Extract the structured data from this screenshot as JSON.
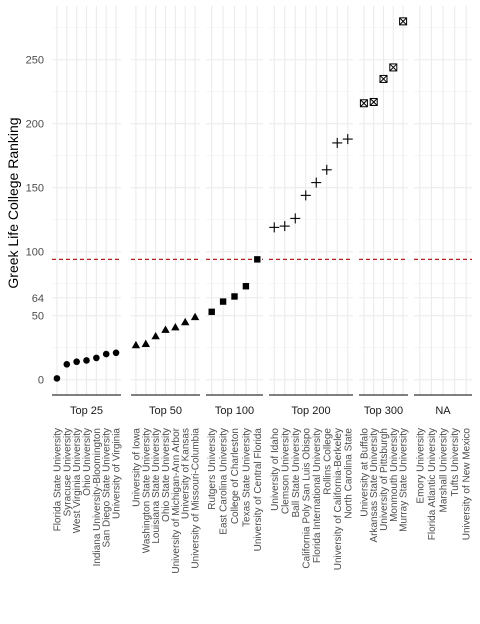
{
  "chart_data": {
    "type": "scatter",
    "ylabel": "Greek Life College Ranking",
    "xlabel": "",
    "y_ticks": [
      0,
      50,
      64,
      100,
      150,
      200,
      250
    ],
    "ylim": [
      -12,
      292
    ],
    "reference_line": {
      "y": 94,
      "style": "dashed",
      "color": "#b22222"
    },
    "grid": true,
    "theme": "minimal",
    "facets": [
      {
        "label": "Top 25",
        "marker": "circle",
        "points": [
          {
            "school": "Florida State University",
            "rank": 1
          },
          {
            "school": "Syracuse University",
            "rank": 12
          },
          {
            "school": "West Virginia University",
            "rank": 14
          },
          {
            "school": "Ohio University",
            "rank": 15
          },
          {
            "school": "Indiana University-Bloomington",
            "rank": 17
          },
          {
            "school": "San Diego State University",
            "rank": 20
          },
          {
            "school": "University of Virginia",
            "rank": 21
          }
        ]
      },
      {
        "label": "Top 50",
        "marker": "triangle",
        "points": [
          {
            "school": "University of Iowa",
            "rank": 27
          },
          {
            "school": "Washington State University",
            "rank": 28
          },
          {
            "school": "Louisiana State University",
            "rank": 34
          },
          {
            "school": "Ohio State University",
            "rank": 39
          },
          {
            "school": "University of Michigan-Ann Arbor",
            "rank": 41
          },
          {
            "school": "University of Kansas",
            "rank": 45
          },
          {
            "school": "University of Missouri-Columbia",
            "rank": 49
          }
        ]
      },
      {
        "label": "Top 100",
        "marker": "square",
        "points": [
          {
            "school": "Rutgers University",
            "rank": 53
          },
          {
            "school": "East Carolina University",
            "rank": 61
          },
          {
            "school": "College of Charleston",
            "rank": 65
          },
          {
            "school": "Texas State University",
            "rank": 73
          },
          {
            "school": "University of Central Florida",
            "rank": 94
          }
        ]
      },
      {
        "label": "Top 200",
        "marker": "plus",
        "points": [
          {
            "school": "University of Idaho",
            "rank": 119
          },
          {
            "school": "Clemson University",
            "rank": 120
          },
          {
            "school": "Ball State University",
            "rank": 126
          },
          {
            "school": "California Poly San Luis Obispo",
            "rank": 144
          },
          {
            "school": "Florida International University",
            "rank": 154
          },
          {
            "school": "Rollins College",
            "rank": 164
          },
          {
            "school": "University of California-Berkeley",
            "rank": 185
          },
          {
            "school": "North Carolina State",
            "rank": 188
          }
        ]
      },
      {
        "label": "Top 300",
        "marker": "square-cross",
        "points": [
          {
            "school": "University at Buffalo",
            "rank": 216
          },
          {
            "school": "Arkansas State University",
            "rank": 217
          },
          {
            "school": "University of Pittsburgh",
            "rank": 235
          },
          {
            "school": "Monmouth University",
            "rank": 244
          },
          {
            "school": "Murray State University",
            "rank": 280
          }
        ]
      },
      {
        "label": "NA",
        "marker": "none",
        "points": [
          {
            "school": "Emory University",
            "rank": null
          },
          {
            "school": "Florida Atlantic University",
            "rank": null
          },
          {
            "school": "Marshall University",
            "rank": null
          },
          {
            "school": "Tufts University",
            "rank": null
          },
          {
            "school": "University of New Mexico",
            "rank": null
          }
        ]
      }
    ]
  }
}
